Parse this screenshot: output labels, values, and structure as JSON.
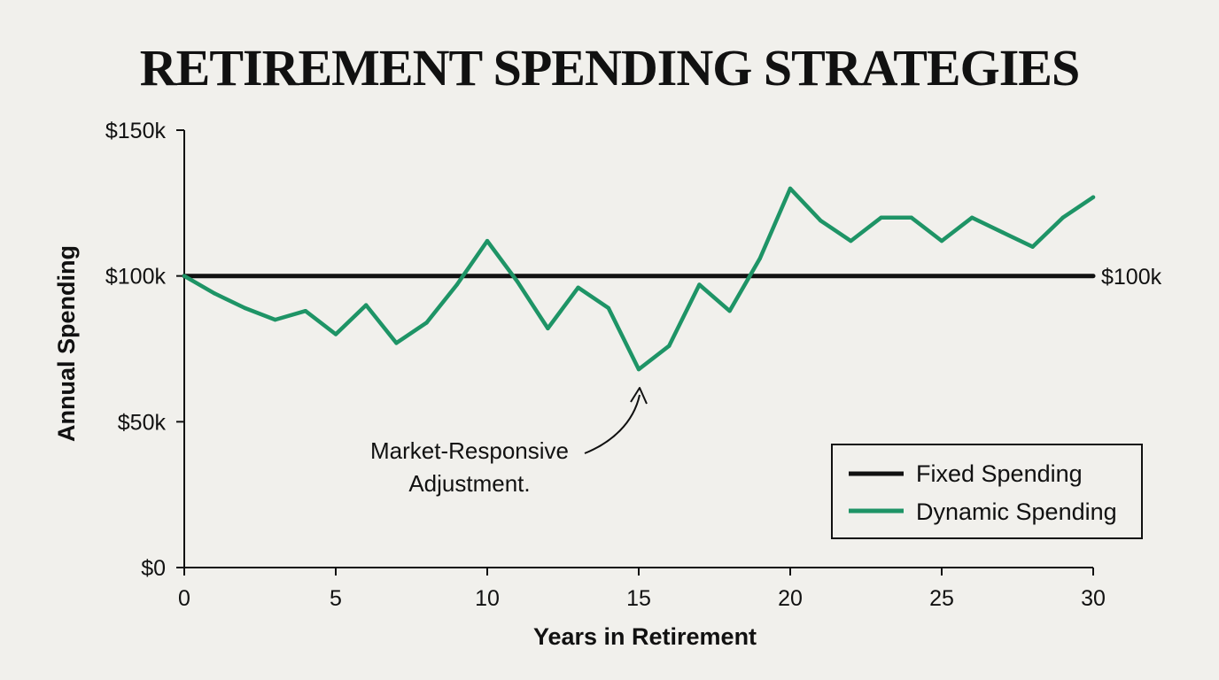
{
  "chart_data": {
    "type": "line",
    "title": "RETIREMENT SPENDING STRATEGIES",
    "xlabel": "Years in Retirement",
    "ylabel": "Annual Spending",
    "xlim": [
      0,
      30
    ],
    "ylim": [
      0,
      150
    ],
    "x_ticks": [
      0,
      5,
      10,
      15,
      20,
      25,
      30
    ],
    "y_ticks": [
      {
        "value": 0,
        "label": "$0"
      },
      {
        "value": 50,
        "label": "$50k"
      },
      {
        "value": 100,
        "label": "$100k"
      },
      {
        "value": 150,
        "label": "$150k"
      }
    ],
    "grid": false,
    "legend_position": "bottom-right",
    "series": [
      {
        "name": "Fixed Spending",
        "color": "#111111",
        "x": [
          0,
          30
        ],
        "values": [
          100,
          100
        ],
        "end_label": "$100k"
      },
      {
        "name": "Dynamic Spending",
        "color": "#1e9466",
        "x": [
          0,
          1,
          2,
          3,
          4,
          5,
          6,
          7,
          8,
          9,
          10,
          11,
          12,
          13,
          14,
          15,
          16,
          17,
          18,
          19,
          20,
          21,
          22,
          23,
          24,
          25,
          26,
          27,
          28,
          29,
          30
        ],
        "values": [
          100,
          94,
          89,
          85,
          88,
          80,
          90,
          77,
          84,
          97,
          112,
          98,
          82,
          96,
          89,
          68,
          76,
          97,
          88,
          106,
          130,
          119,
          112,
          120,
          120,
          112,
          120,
          115,
          110,
          120,
          127
        ]
      }
    ],
    "annotation": {
      "lines": [
        "Market-Responsive",
        "Adjustment."
      ],
      "x": 15,
      "y": 68
    }
  }
}
